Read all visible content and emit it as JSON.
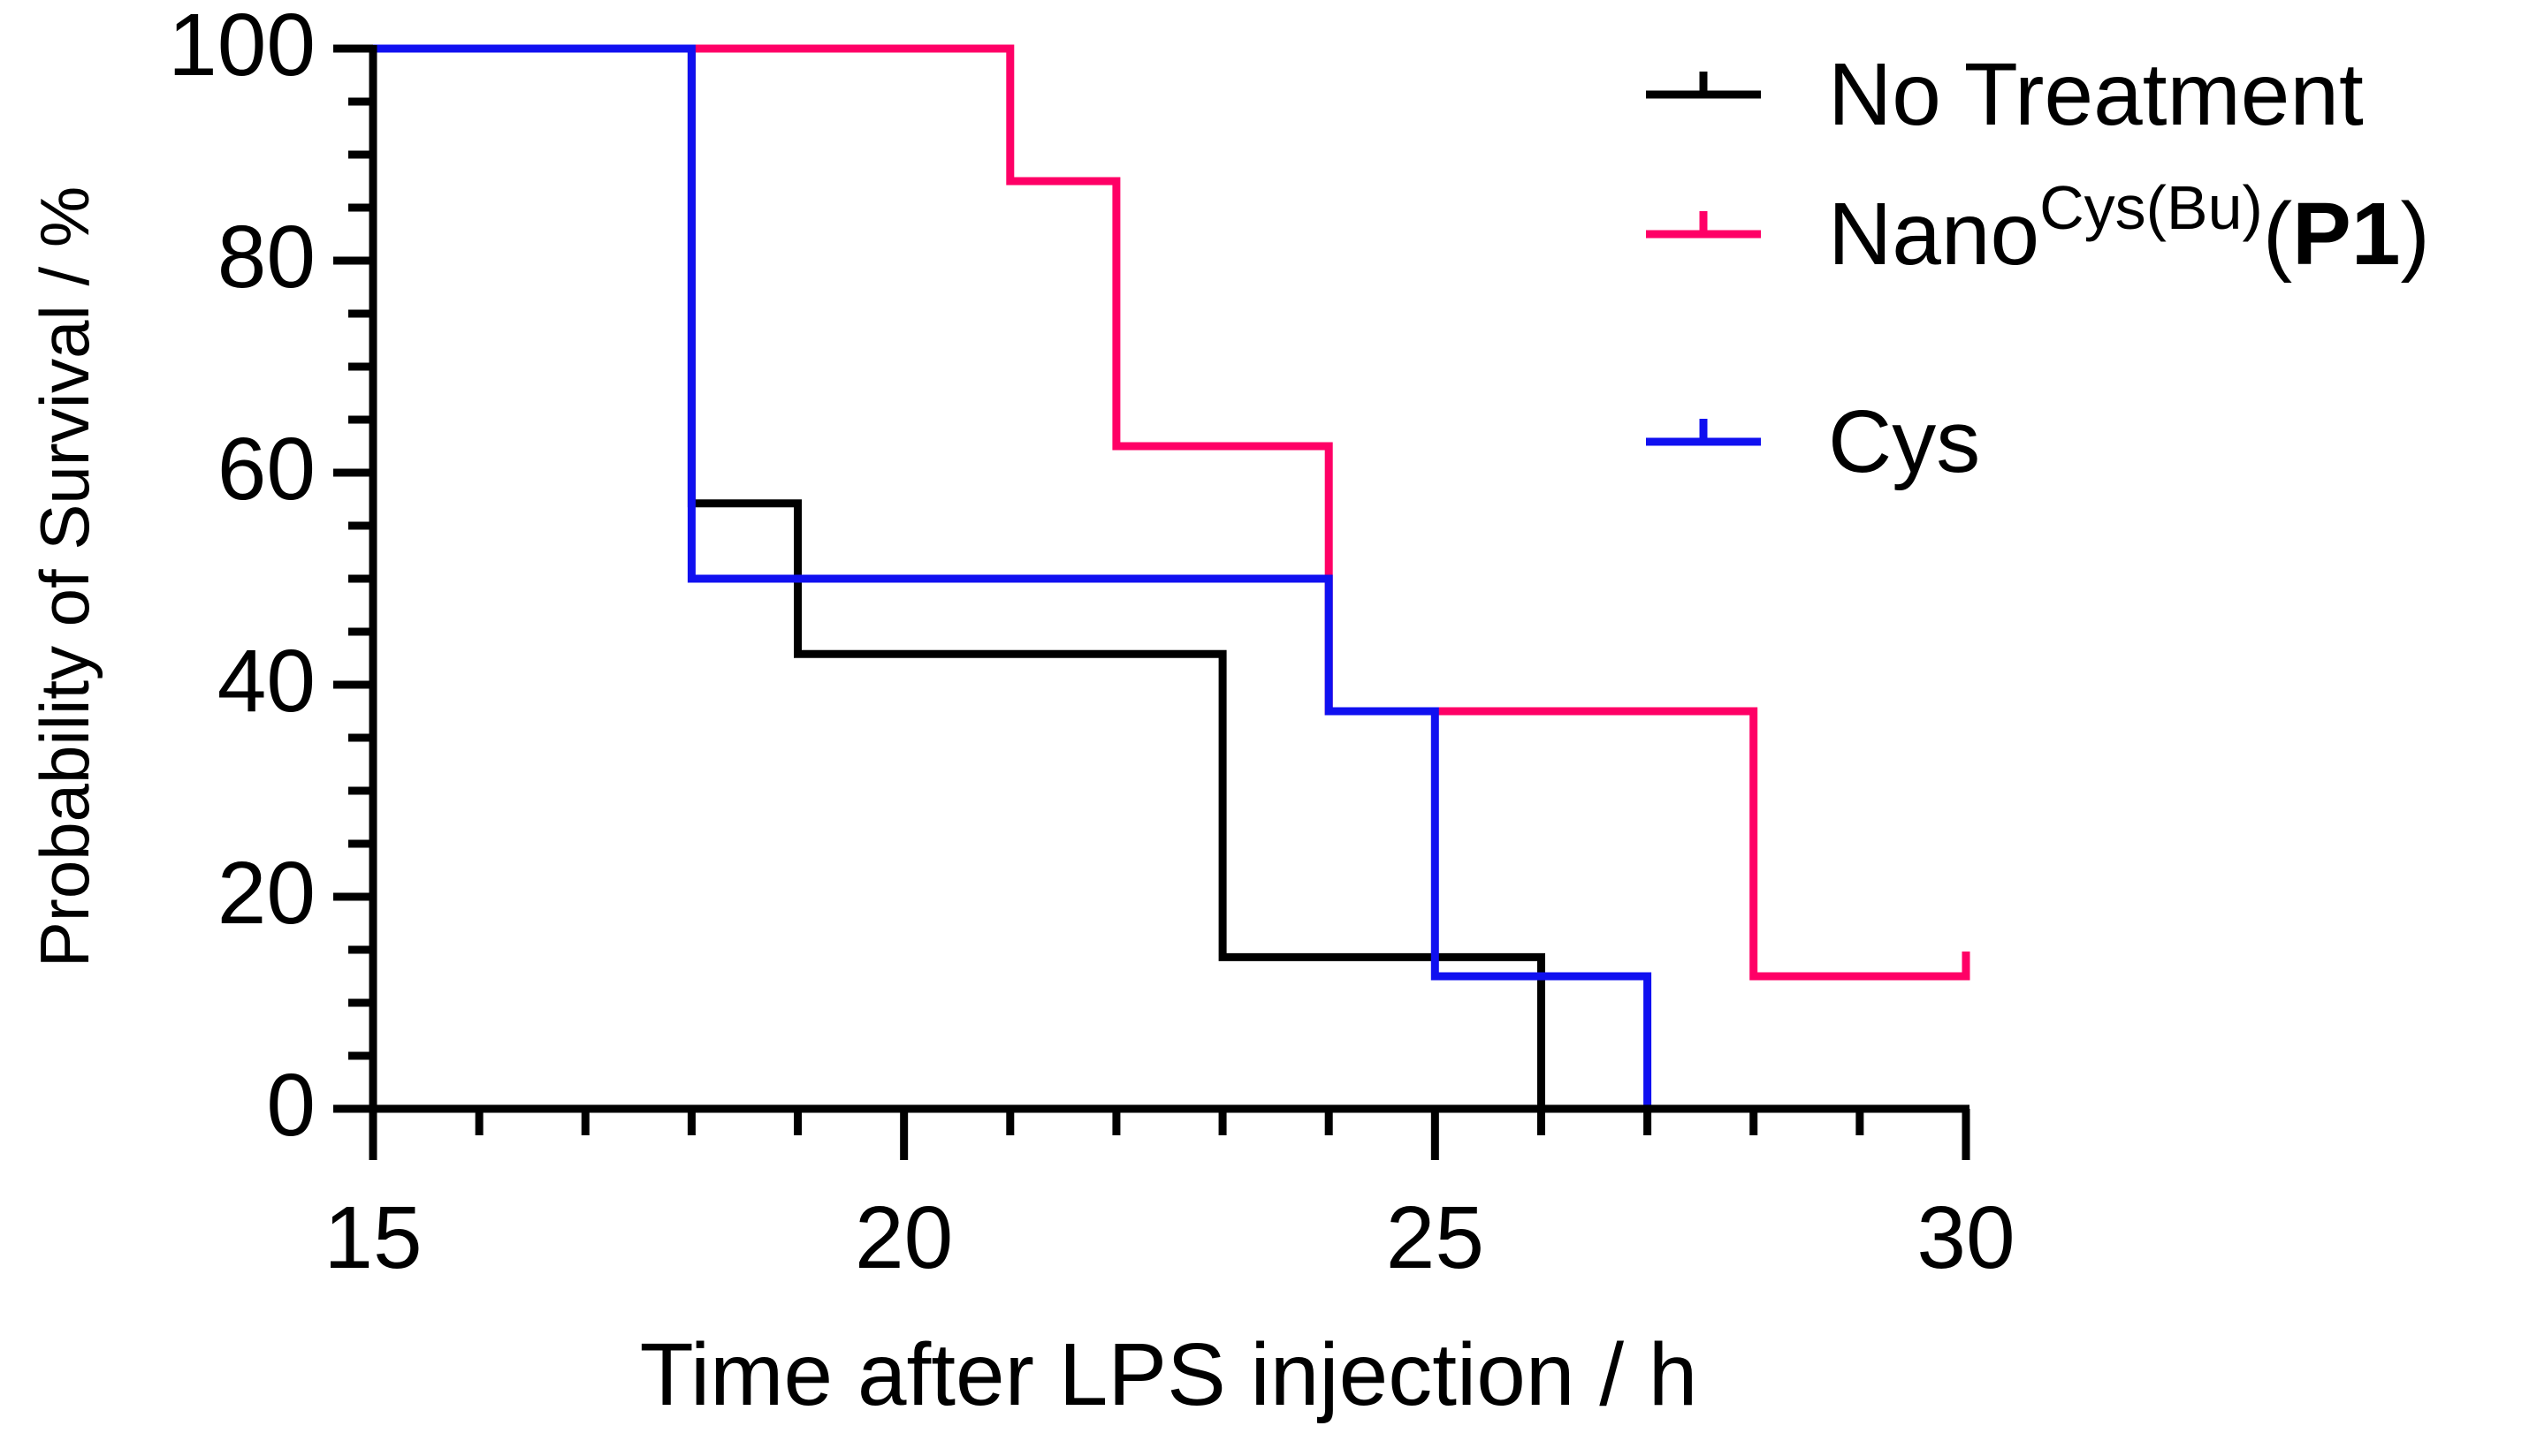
{
  "chart_data": {
    "type": "line",
    "subtype": "kaplan-meier-step",
    "xlabel": "Time after LPS injection / h",
    "ylabel": "Probability of Survival / %",
    "xlim": [
      15,
      30
    ],
    "ylim": [
      0,
      100
    ],
    "x_ticks": [
      15,
      20,
      25,
      30
    ],
    "x_minor_step": 1,
    "y_ticks": [
      0,
      20,
      40,
      60,
      80,
      100
    ],
    "y_minor_step": 5,
    "legend_position": "top-right",
    "series": [
      {
        "key": "no-treatment",
        "name": "No Treatment",
        "label_parts": [
          {
            "text": "No Treatment",
            "style": "normal"
          }
        ],
        "color": "#000000",
        "points": [
          [
            15,
            100
          ],
          [
            18,
            100
          ],
          [
            18,
            57.1
          ],
          [
            19,
            57.1
          ],
          [
            19,
            42.9
          ],
          [
            23,
            42.9
          ],
          [
            23,
            14.3
          ],
          [
            26,
            14.3
          ],
          [
            26,
            0
          ]
        ],
        "censor_marks": []
      },
      {
        "key": "nano-cys-bu-p1",
        "name": "NanoCys(Bu)(P1)",
        "label_parts": [
          {
            "text": "Nano",
            "style": "normal"
          },
          {
            "text": "Cys(Bu)",
            "style": "superscript"
          },
          {
            "text": "(",
            "style": "normal"
          },
          {
            "text": "P1",
            "style": "bold"
          },
          {
            "text": ")",
            "style": "normal"
          }
        ],
        "color": "#FF0066",
        "points": [
          [
            15,
            100
          ],
          [
            21,
            100
          ],
          [
            21,
            87.5
          ],
          [
            22,
            87.5
          ],
          [
            22,
            62.5
          ],
          [
            24,
            62.5
          ],
          [
            24,
            37.5
          ],
          [
            28,
            37.5
          ],
          [
            28,
            12.5
          ],
          [
            30,
            12.5
          ]
        ],
        "censor_marks": [
          [
            30,
            12.5
          ]
        ]
      },
      {
        "key": "cys",
        "name": "Cys",
        "label_parts": [
          {
            "text": "Cys",
            "style": "normal"
          }
        ],
        "color": "#1010F0",
        "points": [
          [
            15,
            100
          ],
          [
            18,
            100
          ],
          [
            18,
            50
          ],
          [
            24,
            50
          ],
          [
            24,
            37.5
          ],
          [
            25,
            37.5
          ],
          [
            25,
            12.5
          ],
          [
            27,
            12.5
          ],
          [
            27,
            0
          ]
        ],
        "censor_marks": []
      }
    ]
  }
}
